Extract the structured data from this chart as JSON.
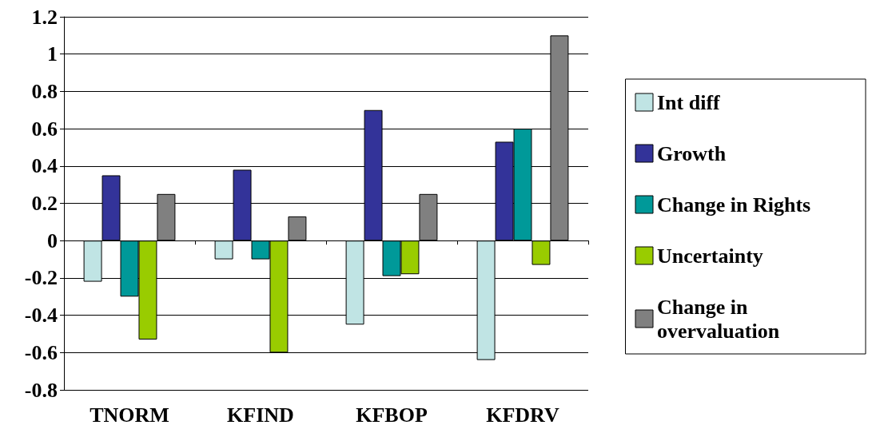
{
  "chart_data": {
    "type": "bar",
    "categories": [
      "TNORM",
      "KFIND",
      "KFBOP",
      "KFDRV"
    ],
    "series": [
      {
        "name": "Int diff",
        "color": "#c0e4e4",
        "values": [
          -0.22,
          -0.1,
          -0.45,
          -0.64
        ]
      },
      {
        "name": "Growth",
        "color": "#333399",
        "values": [
          0.35,
          0.38,
          0.7,
          0.53
        ]
      },
      {
        "name": "Change in Rights",
        "color": "#009999",
        "values": [
          -0.3,
          -0.1,
          -0.19,
          0.6
        ]
      },
      {
        "name": "Uncertainty",
        "color": "#99cc00",
        "values": [
          -0.53,
          -0.6,
          -0.18,
          -0.13
        ]
      },
      {
        "name": "Change in overvaluation",
        "color": "#808080",
        "values": [
          0.25,
          0.13,
          0.25,
          1.1
        ]
      }
    ],
    "ylim": [
      -0.8,
      1.2
    ],
    "yticks": [
      -0.8,
      -0.6,
      -0.4,
      -0.2,
      0,
      0.2,
      0.4,
      0.6,
      0.8,
      1,
      1.2
    ],
    "grid": "y",
    "legend": "right"
  }
}
